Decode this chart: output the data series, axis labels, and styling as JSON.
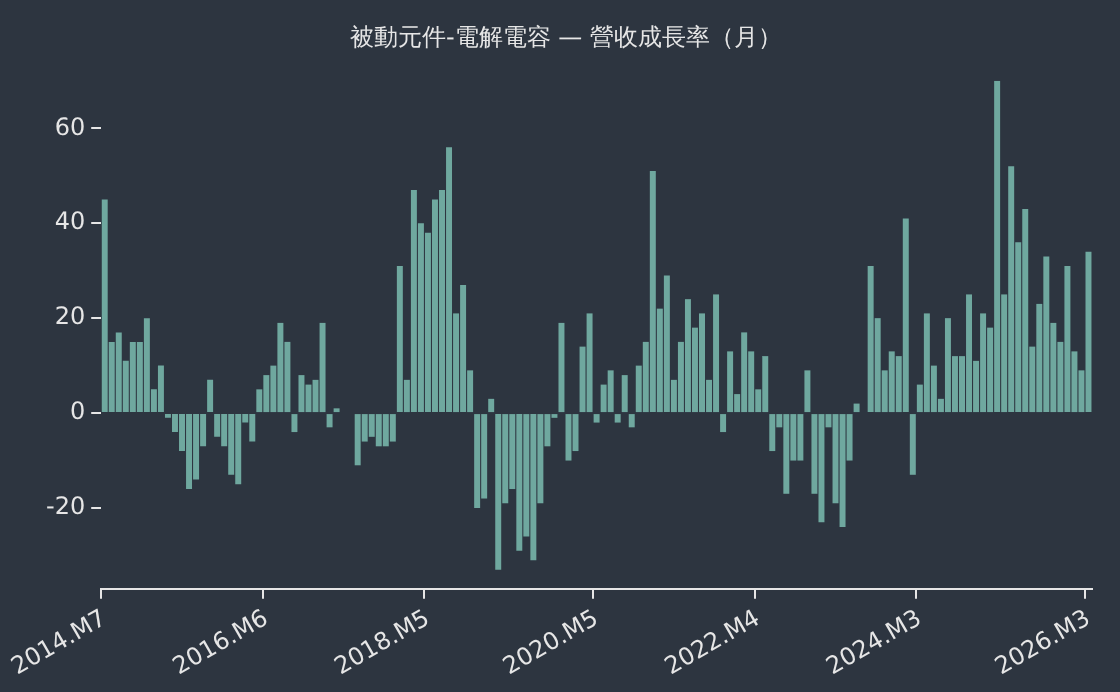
{
  "chart_data": {
    "type": "bar",
    "title": "被動元件-電解電容 — 營收成長率（月）",
    "categories": [
      "2014.M7",
      null,
      null,
      null,
      null,
      null,
      null,
      null,
      null,
      null,
      null,
      null,
      null,
      null,
      null,
      null,
      null,
      null,
      null,
      null,
      null,
      null,
      null,
      "2016.M6",
      null,
      null,
      null,
      null,
      null,
      null,
      null,
      null,
      null,
      null,
      null,
      null,
      null,
      null,
      null,
      null,
      null,
      null,
      null,
      null,
      null,
      null,
      "2018.M5",
      null,
      null,
      null,
      null,
      null,
      null,
      null,
      null,
      null,
      null,
      null,
      null,
      null,
      null,
      null,
      null,
      null,
      null,
      null,
      null,
      null,
      null,
      null,
      "2020.M5",
      null,
      null,
      null,
      null,
      null,
      null,
      null,
      null,
      null,
      null,
      null,
      null,
      null,
      null,
      null,
      null,
      null,
      null,
      null,
      null,
      null,
      null,
      "2022.M4",
      null,
      null,
      null,
      null,
      null,
      null,
      null,
      null,
      null,
      null,
      null,
      null,
      null,
      null,
      null,
      null,
      null,
      null,
      null,
      null,
      null,
      null,
      "2024.M3",
      null,
      null,
      null,
      null,
      null,
      null,
      null,
      null,
      null,
      null,
      null,
      null,
      null,
      null,
      null,
      null,
      null,
      null,
      null,
      null,
      null,
      null,
      null,
      "2026.M3"
    ],
    "values": [
      45,
      15,
      17,
      11,
      15,
      15,
      20,
      5,
      10,
      -1,
      -4,
      -8,
      -16,
      -14,
      -7,
      7,
      -5,
      -7,
      -13,
      -15,
      -2,
      -6,
      5,
      8,
      10,
      19,
      15,
      -4,
      8,
      6,
      7,
      19,
      -3,
      1,
      0,
      0,
      -11,
      -6,
      -5,
      -7,
      -7,
      -6,
      31,
      7,
      47,
      40,
      38,
      45,
      47,
      56,
      21,
      27,
      9,
      -20,
      -18,
      3,
      -33,
      -19,
      -16,
      -29,
      -26,
      -31,
      -19,
      -7,
      -1,
      19,
      -10,
      -8,
      14,
      21,
      -2,
      6,
      9,
      -2,
      8,
      -3,
      10,
      15,
      51,
      22,
      29,
      7,
      15,
      24,
      18,
      21,
      7,
      25,
      -4,
      13,
      4,
      17,
      13,
      5,
      12,
      -8,
      -3,
      -17,
      -10,
      -10,
      9,
      -17,
      -23,
      -3,
      -19,
      -24,
      -10,
      2,
      0,
      31,
      20,
      9,
      13,
      12,
      41,
      -13,
      6,
      21,
      10,
      3,
      20,
      12,
      12,
      25,
      11,
      21,
      18,
      70,
      25,
      52,
      36,
      43,
      14,
      23,
      33,
      19,
      15,
      31,
      13,
      9,
      34
    ],
    "color": "#6fa89f",
    "ylim": [
      -37,
      70
    ],
    "yticks": [
      -20,
      0,
      20,
      40,
      60
    ],
    "grid": false,
    "legend": false
  }
}
